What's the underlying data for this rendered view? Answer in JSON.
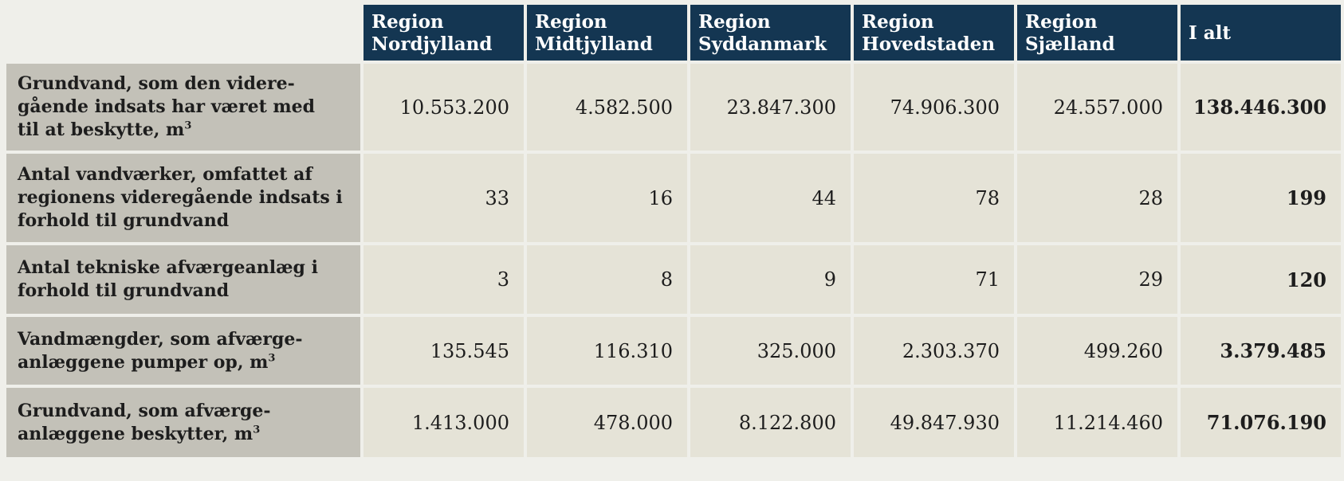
{
  "columns": [
    {
      "line1": "Region",
      "line2": "Nordjylland"
    },
    {
      "line1": "Region",
      "line2": "Midtjylland"
    },
    {
      "line1": "Region",
      "line2": "Syddanmark"
    },
    {
      "line1": "Region",
      "line2": "Hovedstaden"
    },
    {
      "line1": "Region",
      "line2": "Sjælland"
    },
    {
      "line1": "I alt",
      "line2": ""
    }
  ],
  "rows": [
    {
      "label": "Grundvand, som den videre-gående indsats har været med til at beskytte, m",
      "label_lines": [
        "Grundvand, som den videre-",
        "gående indsats har været med",
        "til at beskytte, m"
      ],
      "superscript": "3",
      "values": [
        "10.553.200",
        "4.582.500",
        "23.847.300",
        "74.906.300",
        "24.557.000"
      ],
      "total": "138.446.300"
    },
    {
      "label": "Antal vandværker, omfattet af regionens videregående indsats i forhold til grundvand",
      "label_lines": [
        "Antal vandværker, omfattet af",
        "regionens videregående indsats i",
        "forhold til grundvand"
      ],
      "superscript": "",
      "values": [
        "33",
        "16",
        "44",
        "78",
        "28"
      ],
      "total": "199"
    },
    {
      "label": "Antal tekniske afværgeanlæg i forhold til grundvand",
      "label_lines": [
        "Antal tekniske afværgeanlæg i",
        "forhold til grundvand"
      ],
      "superscript": "",
      "values": [
        "3",
        "8",
        "9",
        "71",
        "29"
      ],
      "total": "120"
    },
    {
      "label": "Vandmængder, som afværge-anlæggene pumper op, m",
      "label_lines": [
        "Vandmængder, som afværge-",
        "anlæggene pumper op, m"
      ],
      "superscript": "3",
      "values": [
        "135.545",
        "116.310",
        "325.000",
        "2.303.370",
        "499.260"
      ],
      "total": "3.379.485"
    },
    {
      "label": "Grundvand, som afværge-anlæggene beskytter, m",
      "label_lines": [
        "Grundvand, som afværge-",
        "anlæggene beskytter, m"
      ],
      "superscript": "3",
      "values": [
        "1.413.000",
        "478.000",
        "8.122.800",
        "49.847.930",
        "11.214.460"
      ],
      "total": "71.076.190"
    }
  ],
  "colors": {
    "header_bg": "#143652",
    "label_bg": "#c3c1b8",
    "cell_bg": "#e5e3d7",
    "page_bg": "#efefea"
  }
}
